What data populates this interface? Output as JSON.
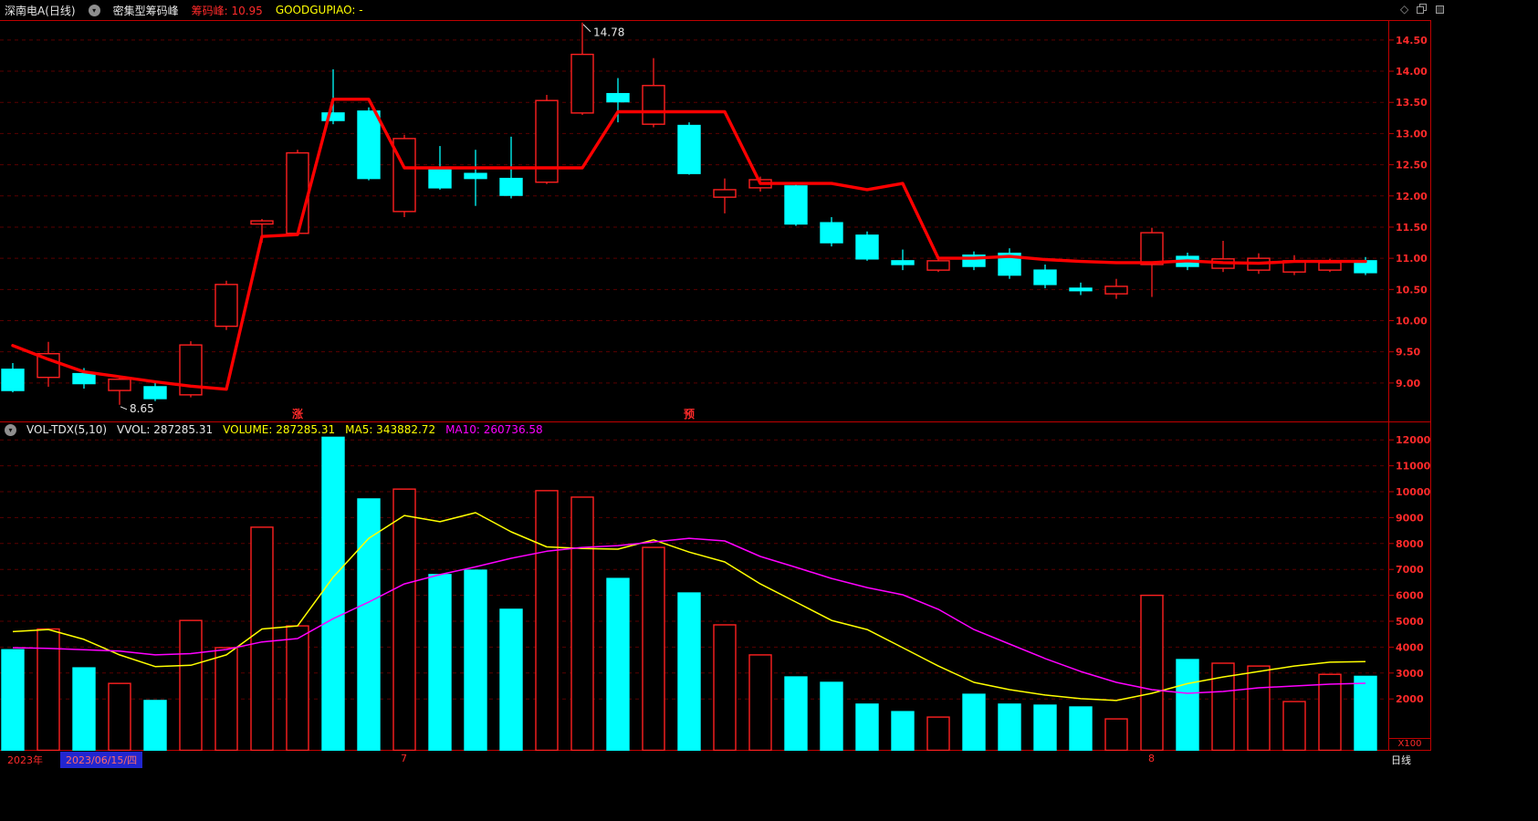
{
  "header": {
    "title": "深南电A(日线)",
    "indicator_name": "密集型筹码峰",
    "chouma_value": "筹码峰: 10.95",
    "goodgupiao": "GOODGUPIAO: -"
  },
  "icons": {
    "collapse_glyph": "▾",
    "diamond_glyph": "◇"
  },
  "price_pane": {
    "y_axis_labels": [
      "14.50",
      "14.00",
      "13.50",
      "13.00",
      "12.50",
      "12.00",
      "11.50",
      "11.00",
      "10.50",
      "10.00",
      "9.50",
      "9.00"
    ],
    "candles": [
      [
        9.22,
        9.32,
        8.85,
        8.88
      ],
      [
        9.09,
        9.66,
        8.94,
        9.47
      ],
      [
        9.15,
        9.24,
        8.91,
        8.99
      ],
      [
        8.88,
        9.1,
        8.65,
        9.06
      ],
      [
        8.94,
        9.0,
        8.71,
        8.75
      ],
      [
        8.81,
        9.67,
        8.77,
        9.61
      ],
      [
        9.91,
        10.64,
        9.85,
        10.58
      ],
      [
        11.55,
        11.63,
        11.25,
        11.6
      ],
      [
        11.4,
        12.74,
        11.37,
        12.69
      ],
      [
        13.33,
        14.03,
        13.15,
        13.21
      ],
      [
        13.36,
        13.42,
        12.25,
        12.28
      ],
      [
        11.75,
        12.98,
        11.66,
        12.92
      ],
      [
        12.45,
        12.8,
        12.1,
        12.13
      ],
      [
        12.36,
        12.74,
        11.84,
        12.28
      ],
      [
        12.28,
        12.95,
        11.96,
        12.01
      ],
      [
        12.22,
        13.62,
        12.19,
        13.53
      ],
      [
        13.33,
        14.78,
        13.3,
        14.27
      ],
      [
        13.64,
        13.89,
        13.18,
        13.51
      ],
      [
        13.15,
        14.21,
        13.1,
        13.77
      ],
      [
        13.13,
        13.18,
        12.34,
        12.36
      ],
      [
        11.98,
        12.28,
        11.72,
        12.1
      ],
      [
        12.13,
        12.31,
        12.07,
        12.26
      ],
      [
        12.16,
        12.22,
        11.52,
        11.55
      ],
      [
        11.57,
        11.66,
        11.19,
        11.25
      ],
      [
        11.37,
        11.43,
        10.96,
        10.99
      ],
      [
        10.96,
        11.14,
        10.81,
        10.9
      ],
      [
        10.81,
        11.02,
        10.78,
        10.96
      ],
      [
        11.05,
        11.11,
        10.81,
        10.87
      ],
      [
        11.08,
        11.16,
        10.67,
        10.73
      ],
      [
        10.81,
        10.9,
        10.52,
        10.58
      ],
      [
        10.52,
        10.61,
        10.41,
        10.48
      ],
      [
        10.43,
        10.67,
        10.35,
        10.55
      ],
      [
        10.9,
        11.49,
        10.38,
        11.41
      ],
      [
        11.03,
        11.09,
        10.81,
        10.87
      ],
      [
        10.84,
        11.28,
        10.78,
        10.99
      ],
      [
        10.81,
        11.08,
        10.75,
        11.0
      ],
      [
        10.78,
        11.05,
        10.73,
        10.96
      ],
      [
        10.81,
        10.99,
        10.78,
        10.93
      ],
      [
        10.96,
        11.02,
        10.73,
        10.77
      ]
    ],
    "signal_line": [
      9.6,
      9.38,
      9.18,
      9.1,
      9.02,
      8.95,
      8.9,
      11.35,
      11.38,
      13.55,
      13.55,
      12.45,
      12.45,
      12.45,
      12.45,
      12.45,
      12.45,
      13.35,
      13.35,
      13.35,
      13.35,
      12.2,
      12.2,
      12.2,
      12.1,
      12.2,
      11.0,
      11.0,
      11.03,
      10.98,
      10.95,
      10.93,
      10.93,
      10.96,
      10.93,
      10.92,
      10.95,
      10.95,
      10.95
    ],
    "annotations": {
      "high": {
        "text": "14.78",
        "index": 16
      },
      "low": {
        "text": "8.65",
        "index": 3
      }
    },
    "event_markers": [
      {
        "text": "涨",
        "index": 8
      },
      {
        "text": "预",
        "index": 19
      }
    ]
  },
  "volume_pane": {
    "indicator_title": "VOL-TDX(5,10)",
    "vvol": "VVOL: 287285.31",
    "volume_label": "VOLUME: 287285.31",
    "ma5_label": "MA5: 343882.72",
    "ma10_label": "MA10: 260736.58",
    "y_axis_labels": [
      "12000",
      "11000",
      "10000",
      "9000",
      "8000",
      "7000",
      "6000",
      "5000",
      "4000",
      "3000",
      "2000"
    ],
    "unit": "X100",
    "bars": [
      3900,
      4700,
      3200,
      2600,
      1940,
      5030,
      3980,
      8630,
      4820,
      12100,
      9720,
      10100,
      6800,
      6970,
      5460,
      10040,
      9790,
      6650,
      7850,
      6090,
      4860,
      3700,
      2850,
      2640,
      1800,
      1510,
      1300,
      2180,
      1800,
      1760,
      1690,
      1230,
      6000,
      3520,
      3380,
      3270,
      1900,
      2950,
      2873
    ],
    "ma5": [
      4600,
      4680,
      4300,
      3700,
      3250,
      3300,
      3700,
      4700,
      4820,
      6700,
      8200,
      9080,
      8840,
      9190,
      8450,
      7870,
      7810,
      7780,
      8140,
      7670,
      7290,
      6440,
      5740,
      5030,
      4680,
      3980,
      3270,
      2640,
      2360,
      2150,
      2010,
      1940,
      2220,
      2590,
      2850,
      3060,
      3270,
      3420,
      3439
    ],
    "ma10": [
      3980,
      3950,
      3900,
      3850,
      3700,
      3750,
      3910,
      4200,
      4330,
      5100,
      5740,
      6440,
      6800,
      7100,
      7430,
      7700,
      7850,
      7920,
      8060,
      8200,
      8100,
      7500,
      7080,
      6650,
      6300,
      6020,
      5460,
      4680,
      4120,
      3560,
      3060,
      2640,
      2360,
      2220,
      2290,
      2430,
      2500,
      2570,
      2607
    ]
  },
  "bottom_bar": {
    "year_label": "2023年",
    "selected_date": "2023/06/15/四",
    "month_markers": [
      {
        "text": "7",
        "index": 11
      },
      {
        "text": "8",
        "index": 32
      }
    ],
    "period": "日线"
  },
  "colors": {
    "up": "#ff2020",
    "down": "#00ffff",
    "signal": "#ff0000",
    "ma5": "#ffff00",
    "ma10": "#ff00ff",
    "grid": "#5a0000",
    "border": "#c00000",
    "axis_text": "#ff2a2a",
    "selection_bg": "#2126d0"
  }
}
